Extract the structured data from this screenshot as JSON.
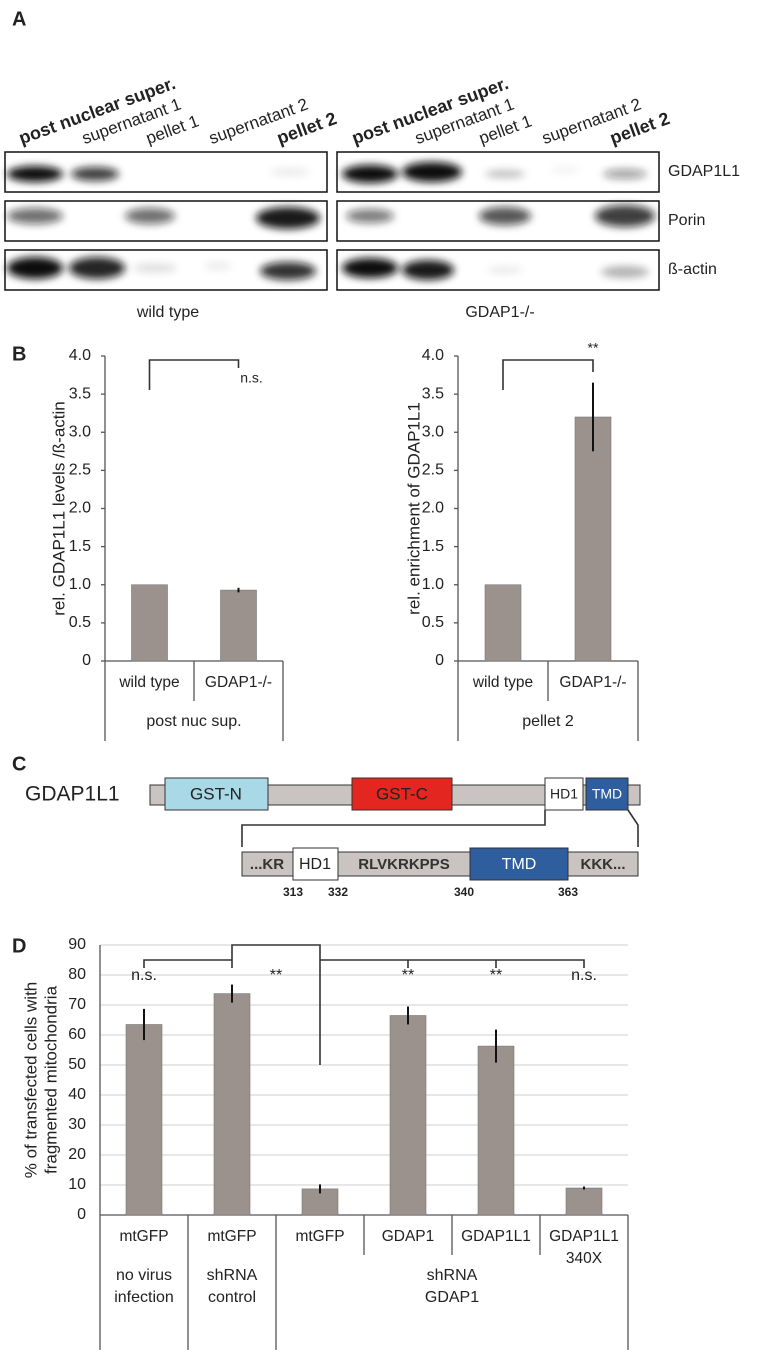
{
  "panel_labels": [
    "A",
    "B",
    "C",
    "D"
  ],
  "blot": {
    "left_headers": [
      "post nuclear super.",
      "supernatant 1",
      "pellet 1",
      "supernatant 2",
      "pellet 2"
    ],
    "right_headers": [
      "post nuclear super.",
      "supernatant 1",
      "pellet 1",
      "supernatant 2",
      "pellet 2"
    ],
    "rows": [
      "GDAP1L1",
      "Porin",
      "ß-actin"
    ],
    "groups": [
      "wild type",
      "GDAP1-/-"
    ]
  },
  "domain_diagram": {
    "protein": "GDAP1L1",
    "domains": [
      "GST-N",
      "GST-C",
      "HD1",
      "TMD"
    ],
    "zoom": [
      "...KR",
      "HD1",
      "RLVKRKPPS",
      "TMD",
      "KKK..."
    ],
    "positions": [
      "313",
      "332",
      "340",
      "363"
    ]
  },
  "chart_data": [
    {
      "type": "bar",
      "ylabel": [
        "rel. GDAP1L1 levels /ß-actin"
      ],
      "categories": [
        "wild type",
        "GDAP1-/-"
      ],
      "values": [
        1.0,
        0.93
      ],
      "errors": [
        null,
        0.03
      ],
      "color": "#9c928d",
      "ylim": [
        0,
        4
      ],
      "yticks": [
        0,
        0.5,
        {
          "value": 1,
          "label": "1.0"
        },
        1.5,
        {
          "value": 2,
          "label": "2.0"
        },
        2.5,
        {
          "value": 3,
          "label": "3.0"
        },
        3.5,
        {
          "value": 4,
          "label": "4.0"
        }
      ],
      "grid": false,
      "groups": [
        {
          "lines": [
            "post nuc sup."
          ],
          "categories": [
            0,
            1
          ]
        }
      ],
      "annotations": [
        "n.s."
      ]
    },
    {
      "type": "bar",
      "ylabel": [
        "rel. enrichment of GDAP1L1"
      ],
      "categories": [
        "wild type",
        "GDAP1-/-"
      ],
      "values": [
        1.0,
        3.2
      ],
      "errors": [
        null,
        0.45
      ],
      "color": "#9c928d",
      "ylim": [
        0,
        4
      ],
      "yticks": [
        0,
        0.5,
        {
          "value": 1,
          "label": "1.0"
        },
        1.5,
        {
          "value": 2,
          "label": "2.0"
        },
        2.5,
        {
          "value": 3,
          "label": "3.0"
        },
        3.5,
        {
          "value": 4,
          "label": "4.0"
        }
      ],
      "grid": false,
      "groups": [
        {
          "lines": [
            "pellet 2"
          ],
          "categories": [
            0,
            1
          ]
        }
      ],
      "annotations": [
        "**"
      ]
    },
    {
      "type": "bar",
      "ylabel": [
        "% of transfected cells with",
        "fragmented mitochondria"
      ],
      "categories": [
        "mtGFP",
        "mtGFP",
        "mtGFP",
        "GDAP1",
        "GDAP1L1",
        "GDAP1L1"
      ],
      "category_sublabels": [
        null,
        null,
        null,
        null,
        null,
        "340X"
      ],
      "values": [
        63.5,
        73.8,
        8.7,
        66.5,
        56.3,
        9.0
      ],
      "errors": [
        5.2,
        3.0,
        1.5,
        3.0,
        5.5,
        0.5
      ],
      "color": "#9c928d",
      "ylim": [
        0,
        90
      ],
      "yticks": [
        0,
        10,
        20,
        30,
        40,
        50,
        60,
        70,
        80,
        90
      ],
      "grid": true,
      "groups": [
        {
          "lines": [
            "no virus",
            "infection"
          ],
          "categories": [
            0
          ]
        },
        {
          "lines": [
            "shRNA",
            "control"
          ],
          "categories": [
            1
          ]
        },
        {
          "lines": [
            "shRNA",
            "GDAP1"
          ],
          "categories": [
            2,
            3,
            4,
            5
          ]
        }
      ],
      "annotations": [
        "n.s.",
        "**",
        "**",
        "**",
        "n.s."
      ]
    }
  ]
}
